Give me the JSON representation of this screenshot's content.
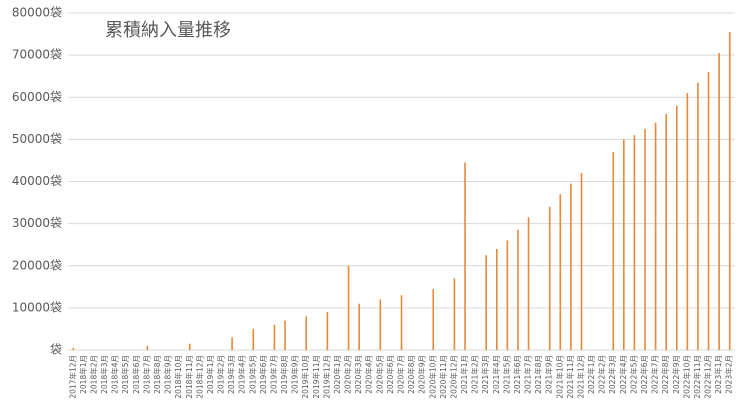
{
  "chart_data": {
    "type": "bar",
    "title": "累積納入量推移",
    "categories": [
      "2017年12月",
      "2018年1月",
      "2018年2月",
      "2018年3月",
      "2018年4月",
      "2018年5月",
      "2018年6月",
      "2018年7月",
      "2018年8月",
      "2018年9月",
      "2018年10月",
      "2018年11月",
      "2018年12月",
      "2019年1月",
      "2019年2月",
      "2019年3月",
      "2019年4月",
      "2019年5月",
      "2019年6月",
      "2019年7月",
      "2019年8月",
      "2019年9月",
      "2019年10月",
      "2019年11月",
      "2019年12月",
      "2020年1月",
      "2020年2月",
      "2020年3月",
      "2020年4月",
      "2020年5月",
      "2020年6月",
      "2020年7月",
      "2020年8月",
      "2020年9月",
      "2020年10月",
      "2020年11月",
      "2020年12月",
      "2021年1月",
      "2021年2月",
      "2021年3月",
      "2021年4月",
      "2021年5月",
      "2021年6月",
      "2021年7月",
      "2021年8月",
      "2021年9月",
      "2021年10月",
      "2021年11月",
      "2021年12月",
      "2022年1月",
      "2022年2月",
      "2022年3月",
      "2022年4月",
      "2022年5月",
      "2022年6月",
      "2022年7月",
      "2022年8月",
      "2022年9月",
      "2022年10月",
      "2022年11月",
      "2022年12月",
      "2023年1月",
      "2023年2月"
    ],
    "values": [
      500,
      null,
      null,
      null,
      null,
      null,
      null,
      1000,
      null,
      null,
      null,
      1500,
      null,
      null,
      null,
      3000,
      null,
      5000,
      null,
      6000,
      7000,
      null,
      8000,
      null,
      9000,
      null,
      20000,
      11000,
      null,
      12000,
      null,
      13000,
      null,
      null,
      14500,
      null,
      17000,
      44500,
      null,
      22500,
      24000,
      26000,
      28500,
      31500,
      null,
      34000,
      37000,
      39500,
      42000,
      null,
      null,
      47000,
      50000,
      51000,
      52500,
      54000,
      56000,
      58000,
      61000,
      63500,
      66000,
      70500,
      75500
    ],
    "color": "#e5893a",
    "ylim": [
      0,
      80000
    ],
    "yticks": [
      {
        "value": 0,
        "label": "袋"
      },
      {
        "value": 10000,
        "label": "10000袋"
      },
      {
        "value": 20000,
        "label": "20000袋"
      },
      {
        "value": 30000,
        "label": "30000袋"
      },
      {
        "value": 40000,
        "label": "40000袋"
      },
      {
        "value": 50000,
        "label": "50000袋"
      },
      {
        "value": 60000,
        "label": "60000袋"
      },
      {
        "value": 70000,
        "label": "70000袋"
      },
      {
        "value": 80000,
        "label": "80000袋"
      }
    ],
    "grid": true
  }
}
